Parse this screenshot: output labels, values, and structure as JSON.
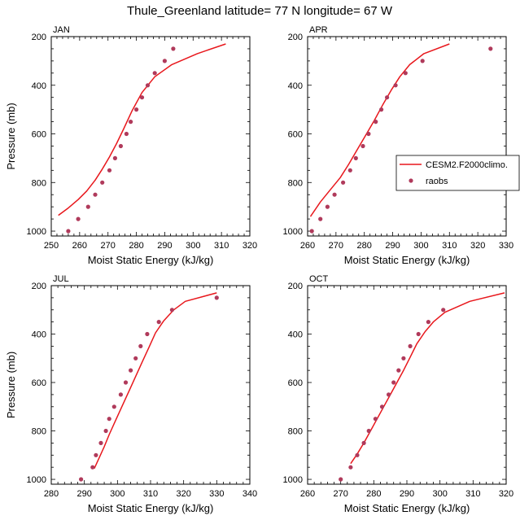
{
  "figure": {
    "title": "Thule_Greenland  latitude= 77 N longitude= 67 W",
    "line_color": "#e8171c",
    "marker_color": "#b03a5b",
    "legend": {
      "line_label": "CESM2.F2000climo.",
      "marker_label": "raobs",
      "placement": "right of APR panel"
    }
  },
  "chart_data": [
    {
      "type": "line",
      "panel": "JAN",
      "xlabel": "Moist Static Energy (kJ/kg)",
      "ylabel": "Pressure (mb)",
      "xlim": [
        250,
        320
      ],
      "ylim": [
        1020,
        200
      ],
      "xticks": [
        250,
        260,
        270,
        280,
        290,
        300,
        310,
        320
      ],
      "yticks": [
        200,
        400,
        600,
        800,
        1000
      ],
      "series": [
        {
          "name": "CESM2.F2000climo.",
          "x": [
            252.5,
            256,
            259.5,
            262.5,
            265.5,
            268,
            270.5,
            273,
            275.5,
            278.5,
            282,
            286.5,
            292.5,
            301.5,
            311.5
          ],
          "y": [
            935,
            905,
            870,
            835,
            790,
            745,
            695,
            640,
            580,
            505,
            430,
            365,
            315,
            270,
            230
          ]
        },
        {
          "name": "raobs",
          "x": [
            256,
            259.5,
            263,
            265.5,
            268,
            270.5,
            272.5,
            274.5,
            276.5,
            278,
            280,
            282,
            284,
            286.5,
            290,
            293
          ],
          "y": [
            1000,
            950,
            900,
            850,
            800,
            750,
            700,
            650,
            600,
            550,
            500,
            450,
            400,
            350,
            300,
            250
          ]
        }
      ]
    },
    {
      "type": "line",
      "panel": "APR",
      "xlabel": "Moist Static Energy (kJ/kg)",
      "ylabel": "",
      "xlim": [
        260,
        330
      ],
      "ylim": [
        1020,
        200
      ],
      "xticks": [
        260,
        270,
        280,
        290,
        300,
        310,
        320,
        330
      ],
      "yticks": [
        200,
        400,
        600,
        800,
        1000
      ],
      "series": [
        {
          "name": "CESM2.F2000climo.",
          "x": [
            261,
            264.5,
            268,
            271.5,
            274.5,
            277.5,
            280.5,
            283.5,
            286.5,
            289.5,
            292.5,
            296,
            301,
            310
          ],
          "y": [
            940,
            880,
            830,
            780,
            725,
            665,
            605,
            545,
            480,
            420,
            365,
            315,
            270,
            230
          ]
        },
        {
          "name": "raobs",
          "x": [
            261.5,
            264.5,
            267,
            269.5,
            272.5,
            275,
            277,
            279.5,
            281.5,
            284,
            286,
            288,
            291,
            294.5,
            300.5,
            324.5
          ],
          "y": [
            1000,
            950,
            900,
            850,
            800,
            750,
            700,
            650,
            600,
            550,
            500,
            450,
            400,
            350,
            300,
            250
          ]
        }
      ]
    },
    {
      "type": "line",
      "panel": "JUL",
      "xlabel": "Moist Static Energy (kJ/kg)",
      "ylabel": "Pressure (mb)",
      "xlim": [
        280,
        340
      ],
      "ylim": [
        1020,
        200
      ],
      "xticks": [
        280,
        290,
        300,
        310,
        320,
        330,
        340
      ],
      "yticks": [
        200,
        400,
        600,
        800,
        1000
      ],
      "series": [
        {
          "name": "CESM2.F2000climo.",
          "x": [
            293,
            294.5,
            296,
            297.5,
            299.5,
            301.5,
            303.5,
            305.5,
            307.5,
            309.5,
            311.5,
            314,
            317,
            320.5,
            330
          ],
          "y": [
            955,
            910,
            865,
            815,
            755,
            695,
            635,
            575,
            515,
            455,
            395,
            345,
            300,
            265,
            230
          ]
        },
        {
          "name": "raobs",
          "x": [
            289,
            292.5,
            293.5,
            295,
            296.5,
            297.5,
            299,
            301,
            302.5,
            304,
            305.5,
            307,
            309,
            312.5,
            316.5,
            330
          ],
          "y": [
            1000,
            950,
            900,
            850,
            800,
            750,
            700,
            650,
            600,
            550,
            500,
            450,
            400,
            350,
            300,
            250
          ]
        }
      ]
    },
    {
      "type": "line",
      "panel": "OCT",
      "xlabel": "Moist Static Energy (kJ/kg)",
      "ylabel": "",
      "xlim": [
        260,
        320
      ],
      "ylim": [
        1020,
        200
      ],
      "xticks": [
        260,
        270,
        280,
        290,
        300,
        310,
        320
      ],
      "yticks": [
        200,
        400,
        600,
        800,
        1000
      ],
      "series": [
        {
          "name": "CESM2.F2000climo.",
          "x": [
            273,
            275,
            277,
            279,
            281,
            283,
            285,
            287,
            289,
            291,
            293,
            295.5,
            298,
            301.5,
            309,
            319.5
          ],
          "y": [
            935,
            895,
            850,
            800,
            750,
            700,
            650,
            600,
            550,
            495,
            440,
            390,
            350,
            310,
            265,
            230
          ]
        },
        {
          "name": "raobs",
          "x": [
            270,
            273,
            275,
            277,
            278.5,
            280.5,
            282.5,
            284.5,
            286,
            287.5,
            289,
            291,
            293.5,
            296.5,
            301
          ],
          "y": [
            1000,
            950,
            900,
            850,
            800,
            750,
            700,
            650,
            600,
            550,
            500,
            450,
            400,
            350,
            300
          ]
        }
      ]
    }
  ]
}
